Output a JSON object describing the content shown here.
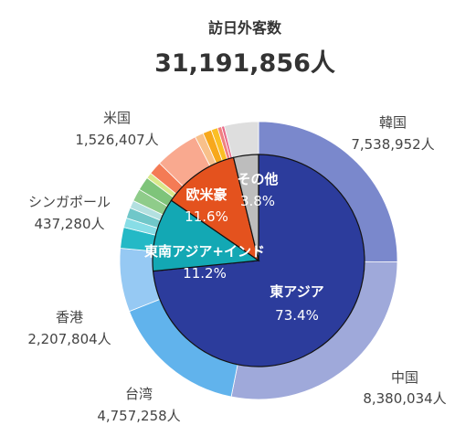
{
  "chart_data": {
    "type": "pie",
    "title": "訪日外客数",
    "total_label": "31,191,856人",
    "inner_ring": [
      {
        "name": "東アジア",
        "pct_label": "73.4%",
        "value": 73.4,
        "color": "#2c3c9c"
      },
      {
        "name": "東南アジア+インド",
        "pct_label": "11.2%",
        "value": 11.2,
        "color": "#13a8b4"
      },
      {
        "name": "欧米豪",
        "pct_label": "11.6%",
        "value": 11.6,
        "color": "#e4521e"
      },
      {
        "name": "その他",
        "pct_label": "3.8%",
        "value": 3.8,
        "color": "#bdbdbd"
      }
    ],
    "outer_ring": [
      {
        "name": "韓国",
        "value_label": "7,538,952人",
        "value": 7538952,
        "color": "#7a88cc"
      },
      {
        "name": "中国",
        "value_label": "8,380,034人",
        "value": 8380034,
        "color": "#9fa9da"
      },
      {
        "name": "台湾",
        "value_label": "4,757,258人",
        "value": 4757258,
        "color": "#61b3ec"
      },
      {
        "name": "香港",
        "value_label": "2,207,804人",
        "value": 2207804,
        "color": "#96c9f3"
      },
      {
        "name": "",
        "value": 730000,
        "color": "#24b9c6"
      },
      {
        "name": "",
        "value": 330000,
        "color": "#88dde6"
      },
      {
        "name": "",
        "value": 370000,
        "color": "#70c7c9"
      },
      {
        "name": "",
        "value": 270000,
        "color": "#b3e0e0"
      },
      {
        "name": "シンガポール",
        "value_label": "437,280人",
        "value": 437280,
        "color": "#8fcc8a"
      },
      {
        "name": "",
        "value": 480000,
        "color": "#7ec47a"
      },
      {
        "name": "",
        "value": 200000,
        "color": "#d9e88a"
      },
      {
        "name": "",
        "value": 460000,
        "color": "#f47b55"
      },
      {
        "name": "米国",
        "value_label": "1,526,407人",
        "value": 1526407,
        "color": "#f9a98f"
      },
      {
        "name": "",
        "value": 300000,
        "color": "#f8c08a"
      },
      {
        "name": "",
        "value": 300000,
        "color": "#f7a81c"
      },
      {
        "name": "",
        "value": 230000,
        "color": "#fbbf24"
      },
      {
        "name": "",
        "value": 140000,
        "color": "#f08080"
      },
      {
        "name": "",
        "value": 100000,
        "color": "#e86a8a"
      },
      {
        "name": "",
        "value": 1190000,
        "color": "#dedede"
      }
    ]
  }
}
